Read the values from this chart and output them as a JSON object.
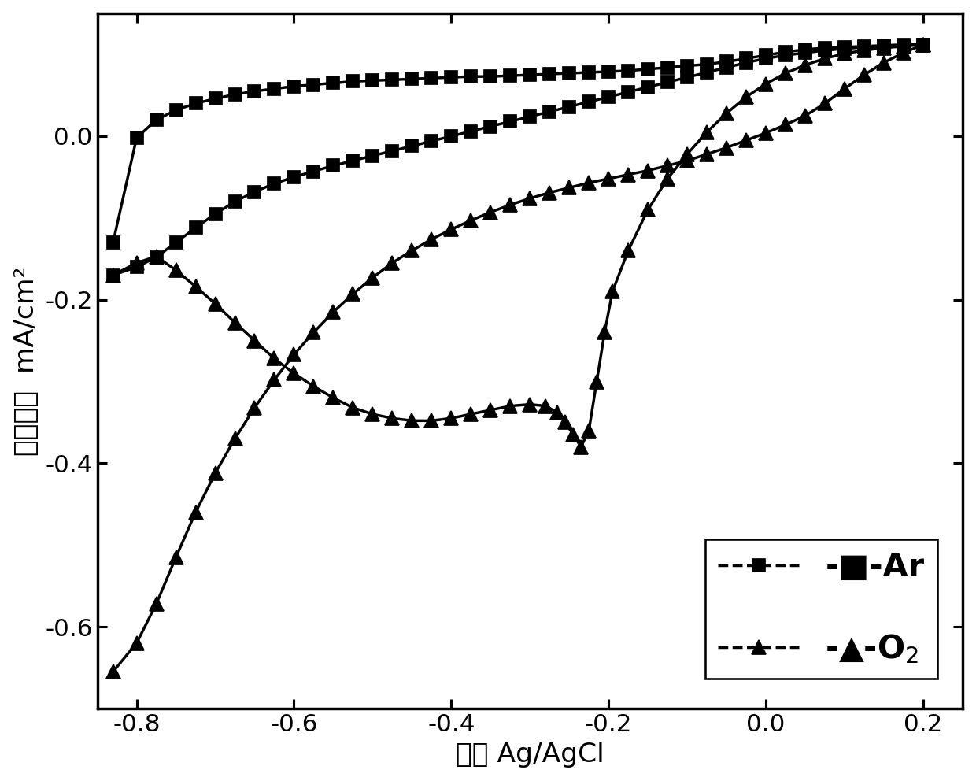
{
  "xlabel": "电势 Ag/AgCl",
  "ylabel": "电流密度  mA/cm²",
  "xlim": [
    -0.85,
    0.25
  ],
  "ylim": [
    -0.7,
    0.15
  ],
  "xticks": [
    -0.8,
    -0.6,
    -0.4,
    -0.2,
    0.0,
    0.2
  ],
  "yticks": [
    -0.6,
    -0.4,
    -0.2,
    0.0
  ],
  "background": "#ffffff",
  "line_color": "#000000",
  "ar_forward_x": [
    -0.83,
    -0.8,
    -0.775,
    -0.75,
    -0.725,
    -0.7,
    -0.675,
    -0.65,
    -0.625,
    -0.6,
    -0.575,
    -0.55,
    -0.525,
    -0.5,
    -0.475,
    -0.45,
    -0.425,
    -0.4,
    -0.375,
    -0.35,
    -0.325,
    -0.3,
    -0.275,
    -0.25,
    -0.225,
    -0.2,
    -0.175,
    -0.15,
    -0.125,
    -0.1,
    -0.075,
    -0.05,
    -0.025,
    0.0,
    0.025,
    0.05,
    0.075,
    0.1,
    0.125,
    0.15,
    0.175,
    0.2
  ],
  "ar_forward_y": [
    -0.13,
    -0.002,
    0.02,
    0.032,
    0.04,
    0.046,
    0.051,
    0.055,
    0.058,
    0.061,
    0.063,
    0.065,
    0.067,
    0.068,
    0.069,
    0.07,
    0.071,
    0.072,
    0.073,
    0.073,
    0.074,
    0.075,
    0.076,
    0.077,
    0.078,
    0.079,
    0.08,
    0.082,
    0.084,
    0.086,
    0.088,
    0.091,
    0.095,
    0.099,
    0.103,
    0.106,
    0.108,
    0.109,
    0.11,
    0.111,
    0.112,
    0.112
  ],
  "ar_reverse_x": [
    0.2,
    0.175,
    0.15,
    0.125,
    0.1,
    0.075,
    0.05,
    0.025,
    0.0,
    -0.025,
    -0.05,
    -0.075,
    -0.1,
    -0.125,
    -0.15,
    -0.175,
    -0.2,
    -0.225,
    -0.25,
    -0.275,
    -0.3,
    -0.325,
    -0.35,
    -0.375,
    -0.4,
    -0.425,
    -0.45,
    -0.475,
    -0.5,
    -0.525,
    -0.55,
    -0.575,
    -0.6,
    -0.625,
    -0.65,
    -0.675,
    -0.7,
    -0.725,
    -0.75,
    -0.775,
    -0.8,
    -0.83
  ],
  "ar_reverse_y": [
    0.112,
    0.111,
    0.11,
    0.109,
    0.107,
    0.105,
    0.102,
    0.099,
    0.095,
    0.09,
    0.084,
    0.078,
    0.072,
    0.066,
    0.06,
    0.054,
    0.048,
    0.042,
    0.036,
    0.03,
    0.024,
    0.018,
    0.012,
    0.006,
    0.0,
    -0.006,
    -0.012,
    -0.018,
    -0.024,
    -0.03,
    -0.036,
    -0.043,
    -0.05,
    -0.058,
    -0.068,
    -0.08,
    -0.095,
    -0.112,
    -0.13,
    -0.148,
    -0.16,
    -0.17
  ],
  "o2_forward_x": [
    -0.83,
    -0.8,
    -0.775,
    -0.75,
    -0.725,
    -0.7,
    -0.675,
    -0.65,
    -0.625,
    -0.6,
    -0.575,
    -0.55,
    -0.525,
    -0.5,
    -0.475,
    -0.45,
    -0.425,
    -0.4,
    -0.375,
    -0.35,
    -0.325,
    -0.3,
    -0.275,
    -0.25,
    -0.225,
    -0.2,
    -0.175,
    -0.15,
    -0.125,
    -0.1,
    -0.075,
    -0.05,
    -0.025,
    0.0,
    0.025,
    0.05,
    0.075,
    0.1,
    0.125,
    0.15,
    0.175,
    0.2
  ],
  "o2_forward_y": [
    -0.655,
    -0.62,
    -0.572,
    -0.515,
    -0.46,
    -0.412,
    -0.37,
    -0.332,
    -0.298,
    -0.267,
    -0.24,
    -0.215,
    -0.193,
    -0.173,
    -0.155,
    -0.14,
    -0.126,
    -0.114,
    -0.103,
    -0.093,
    -0.084,
    -0.076,
    -0.069,
    -0.063,
    -0.057,
    -0.052,
    -0.047,
    -0.042,
    -0.036,
    -0.03,
    -0.022,
    -0.014,
    -0.005,
    0.004,
    0.014,
    0.025,
    0.04,
    0.058,
    0.075,
    0.09,
    0.102,
    0.112
  ],
  "o2_reverse_x": [
    0.2,
    0.175,
    0.15,
    0.125,
    0.1,
    0.075,
    0.05,
    0.025,
    0.0,
    -0.025,
    -0.05,
    -0.075,
    -0.1,
    -0.125,
    -0.15,
    -0.175,
    -0.195,
    -0.205,
    -0.215,
    -0.225,
    -0.235,
    -0.245,
    -0.255,
    -0.265,
    -0.28,
    -0.3,
    -0.325,
    -0.35,
    -0.375,
    -0.4,
    -0.425,
    -0.45,
    -0.475,
    -0.5,
    -0.525,
    -0.55,
    -0.575,
    -0.6,
    -0.625,
    -0.65,
    -0.675,
    -0.7,
    -0.725,
    -0.75,
    -0.775,
    -0.8,
    -0.83
  ],
  "o2_reverse_y": [
    0.112,
    0.11,
    0.108,
    0.105,
    0.101,
    0.095,
    0.087,
    0.077,
    0.064,
    0.048,
    0.028,
    0.005,
    -0.022,
    -0.052,
    -0.09,
    -0.14,
    -0.19,
    -0.24,
    -0.3,
    -0.36,
    -0.38,
    -0.365,
    -0.35,
    -0.338,
    -0.33,
    -0.328,
    -0.33,
    -0.335,
    -0.34,
    -0.345,
    -0.348,
    -0.348,
    -0.345,
    -0.34,
    -0.332,
    -0.32,
    -0.306,
    -0.29,
    -0.272,
    -0.25,
    -0.228,
    -0.205,
    -0.184,
    -0.164,
    -0.147,
    -0.155,
    -0.17
  ],
  "marker_size_sq": 9,
  "marker_size_tri": 10,
  "linewidth": 2.0,
  "tick_labelsize": 18,
  "xlabel_fontsize": 20,
  "ylabel_fontsize": 20,
  "legend_fontsize_ar": 22,
  "legend_fontsize_o2": 28
}
